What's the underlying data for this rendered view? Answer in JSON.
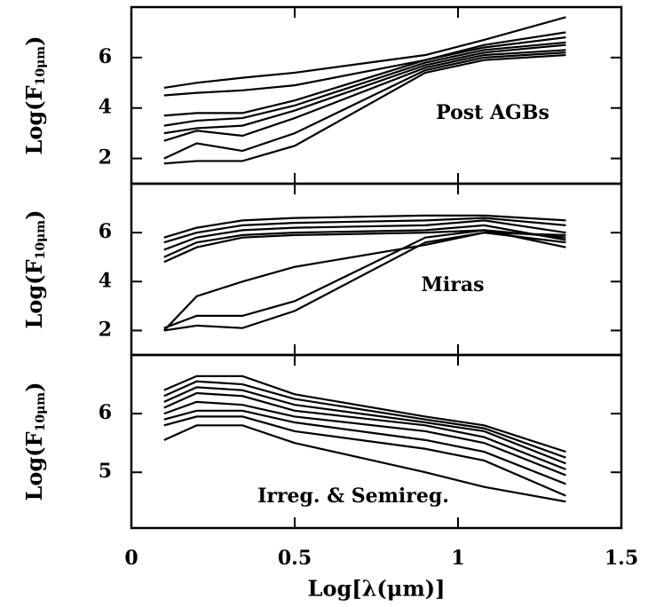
{
  "chart_data": [
    {
      "type": "line",
      "annotation": "Post AGBs",
      "y_label": "Log(F",
      "y_label_sub": "10μm",
      "y_label_end": ")",
      "color": "#000000",
      "xlim": [
        0,
        1.5
      ],
      "xticks": [
        0,
        0.5,
        1,
        1.5
      ],
      "ylim": [
        1,
        8
      ],
      "yticks": [
        2,
        4,
        6
      ],
      "x": [
        0.1,
        0.2,
        0.34,
        0.5,
        0.9,
        1.08,
        1.33
      ],
      "series": [
        {
          "values": [
            4.8,
            5.0,
            5.2,
            5.4,
            6.1,
            6.7,
            7.6
          ]
        },
        {
          "values": [
            4.5,
            4.6,
            4.7,
            4.9,
            5.9,
            6.5,
            7.0
          ]
        },
        {
          "values": [
            3.7,
            3.8,
            3.8,
            4.3,
            5.9,
            6.4,
            6.8
          ]
        },
        {
          "values": [
            3.3,
            3.5,
            3.6,
            4.1,
            5.8,
            6.3,
            6.6
          ]
        },
        {
          "values": [
            3.0,
            3.2,
            3.3,
            3.9,
            5.7,
            6.2,
            6.5
          ]
        },
        {
          "values": [
            2.7,
            3.1,
            2.9,
            3.6,
            5.6,
            6.1,
            6.3
          ]
        },
        {
          "values": [
            2.0,
            2.6,
            2.3,
            3.0,
            5.5,
            6.0,
            6.2
          ]
        },
        {
          "values": [
            1.8,
            1.9,
            1.9,
            2.5,
            5.4,
            5.9,
            6.1
          ]
        }
      ]
    },
    {
      "type": "line",
      "annotation": "Miras",
      "y_label": "Log(F",
      "y_label_sub": "10μm",
      "y_label_end": ")",
      "color": "#000000",
      "xlim": [
        0,
        1.5
      ],
      "xticks": [
        0,
        0.5,
        1,
        1.5
      ],
      "ylim": [
        1,
        8
      ],
      "yticks": [
        2,
        4,
        6
      ],
      "x": [
        0.1,
        0.2,
        0.34,
        0.5,
        0.9,
        1.08,
        1.33
      ],
      "series": [
        {
          "values": [
            5.8,
            6.2,
            6.5,
            6.6,
            6.7,
            6.7,
            6.5
          ]
        },
        {
          "values": [
            5.6,
            6.0,
            6.3,
            6.4,
            6.5,
            6.6,
            6.3
          ]
        },
        {
          "values": [
            5.3,
            5.8,
            6.1,
            6.2,
            6.3,
            6.5,
            6.0
          ]
        },
        {
          "values": [
            5.0,
            5.6,
            5.9,
            6.0,
            6.1,
            6.3,
            5.7
          ]
        },
        {
          "values": [
            4.8,
            5.4,
            5.8,
            5.9,
            6.0,
            6.1,
            5.4
          ]
        },
        {
          "values": [
            2.0,
            3.4,
            4.0,
            4.6,
            5.5,
            6.0,
            5.9
          ]
        },
        {
          "values": [
            2.1,
            2.6,
            2.6,
            3.2,
            5.8,
            6.1,
            5.8
          ]
        },
        {
          "values": [
            2.0,
            2.2,
            2.1,
            2.8,
            5.6,
            6.0,
            5.6
          ]
        }
      ]
    },
    {
      "type": "line",
      "annotation": "Irreg. & Semireg.",
      "y_label": "Log(F",
      "y_label_sub": "10μm",
      "y_label_end": ")",
      "color": "#000000",
      "x_label": "Log[λ(μm)]",
      "xlim": [
        0,
        1.5
      ],
      "xticks": [
        0,
        0.5,
        1,
        1.5
      ],
      "ylim": [
        4.05,
        7.0
      ],
      "yticks": [
        6,
        5
      ],
      "x": [
        0.1,
        0.2,
        0.34,
        0.5,
        0.9,
        1.08,
        1.33
      ],
      "series": [
        {
          "values": [
            6.4,
            6.64,
            6.64,
            6.33,
            5.95,
            5.8,
            5.35
          ]
        },
        {
          "values": [
            6.3,
            6.55,
            6.5,
            6.25,
            5.9,
            5.75,
            5.25
          ]
        },
        {
          "values": [
            6.2,
            6.45,
            6.4,
            6.15,
            5.85,
            5.7,
            5.15
          ]
        },
        {
          "values": [
            6.1,
            6.35,
            6.3,
            6.05,
            5.8,
            5.6,
            5.05
          ]
        },
        {
          "values": [
            6.0,
            6.2,
            6.15,
            5.95,
            5.7,
            5.5,
            4.95
          ]
        },
        {
          "values": [
            5.9,
            6.05,
            6.05,
            5.85,
            5.55,
            5.35,
            4.8
          ]
        },
        {
          "values": [
            5.8,
            5.95,
            5.95,
            5.7,
            5.4,
            5.2,
            4.6
          ]
        },
        {
          "values": [
            5.55,
            5.8,
            5.8,
            5.5,
            5.0,
            4.75,
            4.5
          ]
        }
      ]
    }
  ]
}
